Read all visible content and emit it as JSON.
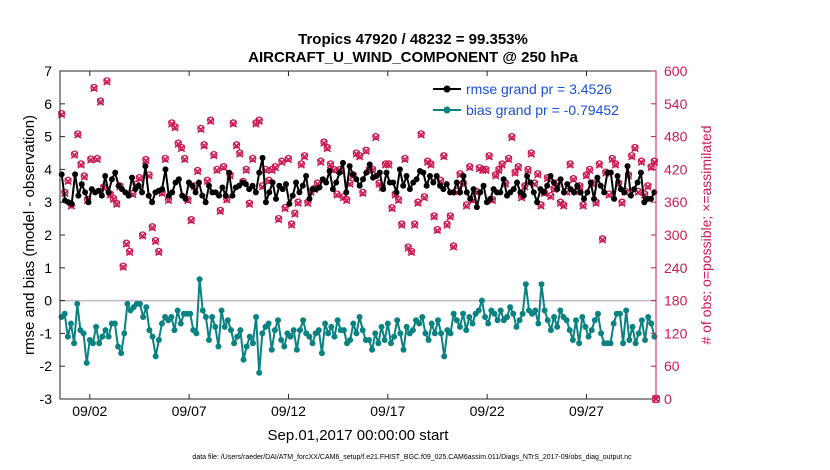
{
  "chart_data": {
    "type": "line",
    "title_line1": "Tropics 47920 / 48232 = 99.353%",
    "title_line2": "AIRCRAFT_U_WIND_COMPONENT @ 250 hPa",
    "ylabel_left": "rmse and bias (model - observation)",
    "ylabel_right": "# of obs: o=possible; ×=assimilated",
    "xlabel": "Sep.01,2017 00:00:00 start",
    "footer": "data file: /Users/raeder/DAI/ATM_forcXX/CAM6_setup/f.e21.FHIST_BGC.f09_025.CAM6assim.011/Diags_NTrS_2017-09/obs_diag_output.nc",
    "ylim_left": [
      -3,
      7
    ],
    "yticks_left": [
      "-3",
      "-2",
      "-1",
      "0",
      "1",
      "2",
      "3",
      "4",
      "5",
      "6",
      "7"
    ],
    "ylim_right": [
      0,
      600
    ],
    "yticks_right": [
      "0",
      "60",
      "120",
      "180",
      "240",
      "300",
      "360",
      "420",
      "480",
      "540",
      "600"
    ],
    "xlim_days": [
      0.5,
      30.5
    ],
    "xticks": [
      {
        "day": 2,
        "label": "09/02"
      },
      {
        "day": 7,
        "label": "09/07"
      },
      {
        "day": 12,
        "label": "09/12"
      },
      {
        "day": 17,
        "label": "09/17"
      },
      {
        "day": 22,
        "label": "09/22"
      },
      {
        "day": 27,
        "label": "09/27"
      }
    ],
    "legend": {
      "rmse_label": "rmse grand pr = 3.4526",
      "bias_label": "bias grand pr = -0.79452",
      "position": "top-right"
    },
    "colors": {
      "rmse": "#000000",
      "bias": "#0a8282",
      "obs": "#cc1a52",
      "zero_line": "#c8b4c8",
      "legend_text": "#1a4fd6"
    },
    "series": [
      {
        "name": "rmse",
        "axis": "left",
        "values": [
          3.85,
          3.05,
          3.0,
          2.95,
          3.85,
          3.2,
          3.55,
          3.3,
          3.0,
          3.4,
          3.3,
          3.35,
          3.2,
          3.8,
          3.3,
          3.7,
          3.9,
          3.5,
          3.4,
          3.3,
          3.2,
          3.75,
          3.4,
          3.5,
          3.3,
          4.1,
          3.2,
          3.0,
          3.3,
          3.35,
          3.4,
          4.0,
          3.2,
          3.3,
          3.6,
          3.7,
          3.2,
          3.1,
          3.6,
          3.5,
          3.3,
          3.6,
          3.2,
          3.0,
          3.5,
          3.3,
          3.3,
          3.2,
          3.45,
          3.2,
          3.9,
          3.2,
          3.45,
          3.5,
          3.6,
          3.55,
          3.4,
          3.5,
          3.3,
          3.9,
          4.35,
          3.0,
          3.3,
          3.6,
          3.1,
          3.5,
          3.4,
          3.55,
          2.95,
          3.2,
          3.6,
          3.3,
          3.5,
          3.8,
          3.1,
          3.4,
          3.4,
          3.45,
          3.7,
          3.6,
          3.95,
          3.4,
          3.6,
          3.9,
          4.2,
          3.3,
          4.1,
          3.85,
          3.7,
          3.5,
          3.7,
          3.9,
          4.15,
          3.75,
          3.8,
          3.9,
          3.4,
          3.9,
          3.6,
          3.6,
          3.3,
          4.0,
          3.5,
          3.8,
          3.4,
          3.6,
          3.7,
          3.95,
          3.9,
          3.5,
          3.8,
          3.6,
          3.8,
          3.5,
          3.4,
          3.55,
          3.3,
          3.3,
          3.6,
          3.3,
          3.8,
          3.3,
          3.1,
          3.4,
          2.85,
          3.3,
          3.5,
          3.0,
          3.1,
          3.4,
          3.3,
          3.3,
          3.7,
          3.2,
          3.3,
          3.4,
          3.6,
          3.3,
          3.2,
          3.8,
          3.6,
          3.3,
          3.0,
          3.4,
          3.3,
          3.5,
          3.8,
          3.6,
          3.4,
          3.7,
          3.3,
          3.55,
          3.4,
          3.3,
          3.5,
          3.3,
          3.1,
          3.3,
          3.6,
          3.1,
          3.75,
          3.5,
          3.3,
          3.9,
          3.9,
          3.1,
          3.8,
          3.4,
          3.3,
          4.1,
          3.2,
          3.4,
          3.6,
          3.9,
          3.0,
          3.1,
          3.1,
          3.3
        ]
      },
      {
        "name": "bias",
        "axis": "left",
        "values": [
          -0.5,
          -0.4,
          -1.1,
          -0.7,
          -1.3,
          -0.1,
          -0.9,
          -1.0,
          -1.9,
          -1.2,
          -1.3,
          -0.8,
          -1.3,
          -1.1,
          -0.9,
          -1.1,
          -0.7,
          -0.7,
          -1.4,
          -1.6,
          -1.0,
          -0.1,
          -0.3,
          -0.2,
          -0.1,
          -0.1,
          -0.5,
          -0.2,
          -0.9,
          -1.1,
          -1.7,
          -1.2,
          -0.7,
          -0.5,
          -0.6,
          -0.5,
          -0.9,
          -0.3,
          -0.7,
          -0.4,
          -0.4,
          -0.4,
          -0.9,
          -1.0,
          0.65,
          -0.3,
          -0.5,
          -1.2,
          -0.5,
          -0.8,
          -1.4,
          -0.3,
          -0.8,
          -0.6,
          -0.9,
          -1.3,
          -1.1,
          -0.9,
          -1.8,
          -1.4,
          -1.1,
          -1.3,
          -0.5,
          -2.2,
          -1.0,
          -0.8,
          -0.7,
          -1.5,
          -0.9,
          -0.6,
          -1.2,
          -1.4,
          -1.0,
          -1.1,
          -0.9,
          -1.5,
          -0.9,
          -0.6,
          -1.0,
          -1.1,
          -1.3,
          -1.0,
          -0.9,
          -1.6,
          -0.7,
          -1.0,
          -0.8,
          -1.1,
          -0.6,
          -0.9,
          -0.9,
          -1.3,
          -1.2,
          -0.7,
          -1.0,
          -0.5,
          -0.9,
          -1.2,
          -1.2,
          -1.5,
          -1.0,
          -1.3,
          -0.8,
          -1.2,
          -0.7,
          -1.3,
          -1.1,
          -0.6,
          -1.0,
          -1.5,
          -0.8,
          -1.0,
          -0.9,
          -0.6,
          -0.7,
          -0.5,
          -1.0,
          -1.2,
          -0.7,
          -1.0,
          -0.6,
          -1.0,
          -1.7,
          -0.9,
          -1.0,
          -0.4,
          -0.6,
          -0.8,
          -0.4,
          -0.9,
          -0.5,
          -0.7,
          -0.4,
          -0.3,
          0.0,
          -0.5,
          -0.7,
          -0.3,
          -0.4,
          -0.6,
          -0.3,
          -0.6,
          -0.5,
          -0.2,
          -0.4,
          -0.8,
          -0.6,
          -0.4,
          0.5,
          -0.3,
          -0.4,
          -0.3,
          -0.7,
          0.5,
          -0.3,
          -0.6,
          -0.9,
          -0.5,
          -0.8,
          -0.3,
          -0.5,
          -0.6,
          -0.9,
          -1.2,
          -0.6,
          -1.3,
          -0.5,
          -0.8,
          -1.1,
          -0.9,
          -0.6,
          -0.4,
          -1.0,
          -1.3,
          -1.3,
          -1.3,
          -0.7,
          -0.4,
          -0.4,
          -1.3,
          -0.3,
          -1.2,
          -0.8,
          -1.3,
          -1.0,
          -0.6,
          -1.2,
          -0.5,
          -0.7,
          -1.1
        ]
      },
      {
        "name": "obs possible / assimilated",
        "axis": "right",
        "values": [
          522,
          378,
          400,
          355,
          448,
          485,
          430,
          408,
          365,
          439,
          570,
          440,
          545,
          388,
          582,
          375,
          367,
          358,
          390,
          243,
          285,
          270,
          376,
          393,
          405,
          300,
          438,
          410,
          315,
          290,
          270,
          378,
          440,
          365,
          505,
          498,
          468,
          460,
          440,
          365,
          328,
          390,
          418,
          495,
          465,
          400,
          510,
          447,
          420,
          345,
          425,
          366,
          410,
          505,
          465,
          450,
          398,
          420,
          358,
          440,
          505,
          510,
          390,
          420,
          400,
          420,
          425,
          330,
          435,
          350,
          440,
          320,
          340,
          360,
          430,
          445,
          360,
          380,
          385,
          395,
          435,
          470,
          460,
          430,
          420,
          375,
          420,
          370,
          365,
          395,
          410,
          450,
          445,
          378,
          455,
          420,
          420,
          480,
          395,
          388,
          430,
          430,
          350,
          375,
          365,
          320,
          440,
          278,
          270,
          320,
          360,
          485,
          370,
          435,
          430,
          335,
          310,
          400,
          445,
          320,
          335,
          280,
          380,
          412,
          395,
          355,
          425,
          365,
          380,
          423,
          420,
          420,
          445,
          365,
          410,
          420,
          430,
          395,
          440,
          480,
          415,
          425,
          370,
          390,
          420,
          450,
          395,
          412,
          355,
          378,
          405,
          372,
          385,
          395,
          360,
          355,
          380,
          430,
          403,
          380,
          390,
          355,
          410,
          420,
          395,
          360,
          430,
          293,
          415,
          375,
          440,
          430,
          395,
          360,
          380,
          410,
          445,
          460,
          380,
          435,
          375,
          390,
          425,
          435
        ],
        "final_value": 0
      }
    ]
  }
}
